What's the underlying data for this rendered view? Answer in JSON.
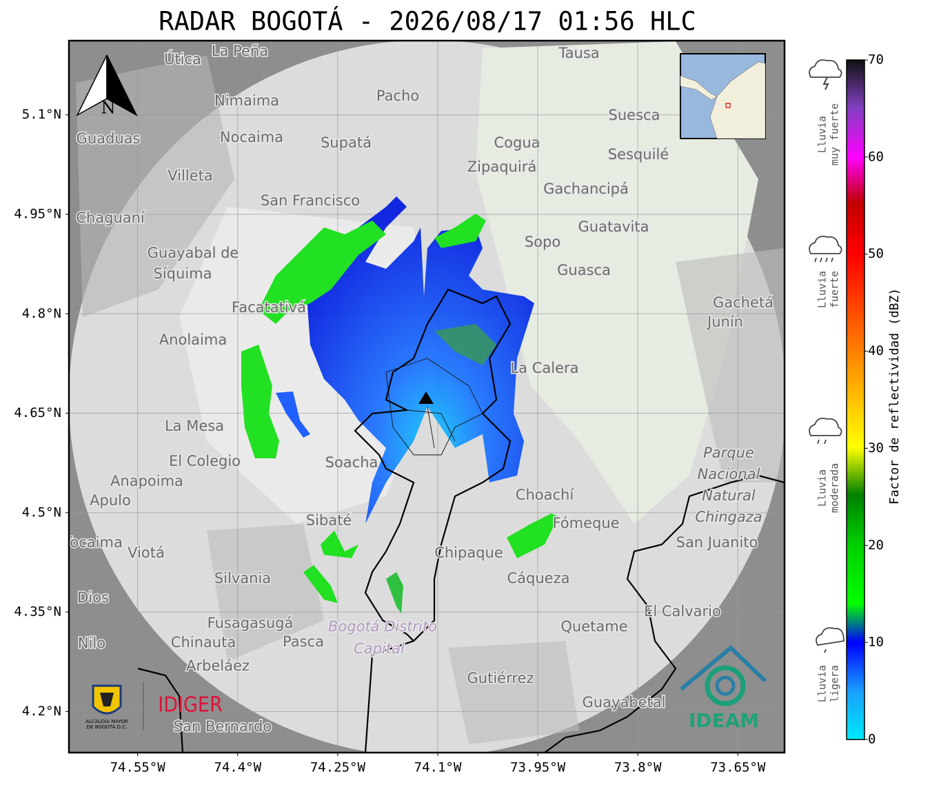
{
  "title": "RADAR BOGOTÁ - 2026/08/17 01:56 HLC",
  "map": {
    "xlim": [
      -74.653,
      -73.58
    ],
    "ylim": [
      4.138,
      5.212
    ],
    "xticks": [
      {
        "value": -74.55,
        "label": "74.55°W"
      },
      {
        "value": -74.4,
        "label": "74.4°W"
      },
      {
        "value": -74.25,
        "label": "74.25°W"
      },
      {
        "value": -74.1,
        "label": "74.1°W"
      },
      {
        "value": -73.95,
        "label": "73.95°W"
      },
      {
        "value": -73.8,
        "label": "73.8°W"
      },
      {
        "value": -73.65,
        "label": "73.65°W"
      }
    ],
    "yticks": [
      {
        "value": 4.2,
        "label": "4.2°N"
      },
      {
        "value": 4.35,
        "label": "4.35°N"
      },
      {
        "value": 4.5,
        "label": "4.5°N"
      },
      {
        "value": 4.65,
        "label": "4.65°N"
      },
      {
        "value": 4.8,
        "label": "4.8°N"
      },
      {
        "value": 4.95,
        "label": "4.95°N"
      },
      {
        "value": 5.1,
        "label": "5.1°N"
      }
    ],
    "grid": true,
    "north": "N",
    "places": [
      "La Peña",
      "Útica",
      "Tausa",
      "Pacho",
      "Nimaima",
      "Nocaima",
      "Supatá",
      "Guaduas",
      "Suesca",
      "Cogua",
      "Sesquilé",
      "Zipaquirá",
      "Villeta",
      "Gachancipá",
      "San Francisco",
      "Chaguaní",
      "Guatavita",
      "Sopo",
      "Guayabal de",
      "Síquima",
      "Guasca",
      "Facatativá",
      "Gachetá",
      "Junín",
      "Anolaima",
      "La Calera",
      "La Mesa",
      "El Colegio",
      "Soacha",
      "Parque",
      "Nacional",
      "Natural",
      "Chingaza",
      "Anapoima",
      "Apulo",
      "Choachí",
      "Sibaté",
      "Fómeque",
      "San Juanito",
      "Tocaima",
      "Viotá",
      "Chipaque",
      "Silvania",
      "Cáqueza",
      "Dios",
      "El Calvario",
      "Fusagasugá",
      "Quetame",
      "Bogotá Distrito",
      "Capital",
      "Chinauta",
      "Pasca",
      "Nilo",
      "Arbeláez",
      "Gutiérrez",
      "Guayabetal",
      "San Bernardo"
    ]
  },
  "colorbar": {
    "label": "Factor de reflectividad (dBZ)",
    "clim": [
      0,
      70
    ],
    "ticks": [
      0,
      10,
      20,
      30,
      40,
      50,
      60,
      70
    ],
    "categories": [
      [
        "Lluvia",
        "muy fuerte"
      ],
      [
        "Lluvia",
        "fuerte"
      ],
      [
        "Lluvia",
        "moderada"
      ],
      [
        "Lluvia",
        "ligera"
      ]
    ]
  },
  "logos": {
    "alcaldia": [
      "ALCALDÍA MAYOR",
      "DE BOGOTÁ D.C."
    ],
    "idiger": "IDIGER",
    "ideam": "IDEAM"
  }
}
